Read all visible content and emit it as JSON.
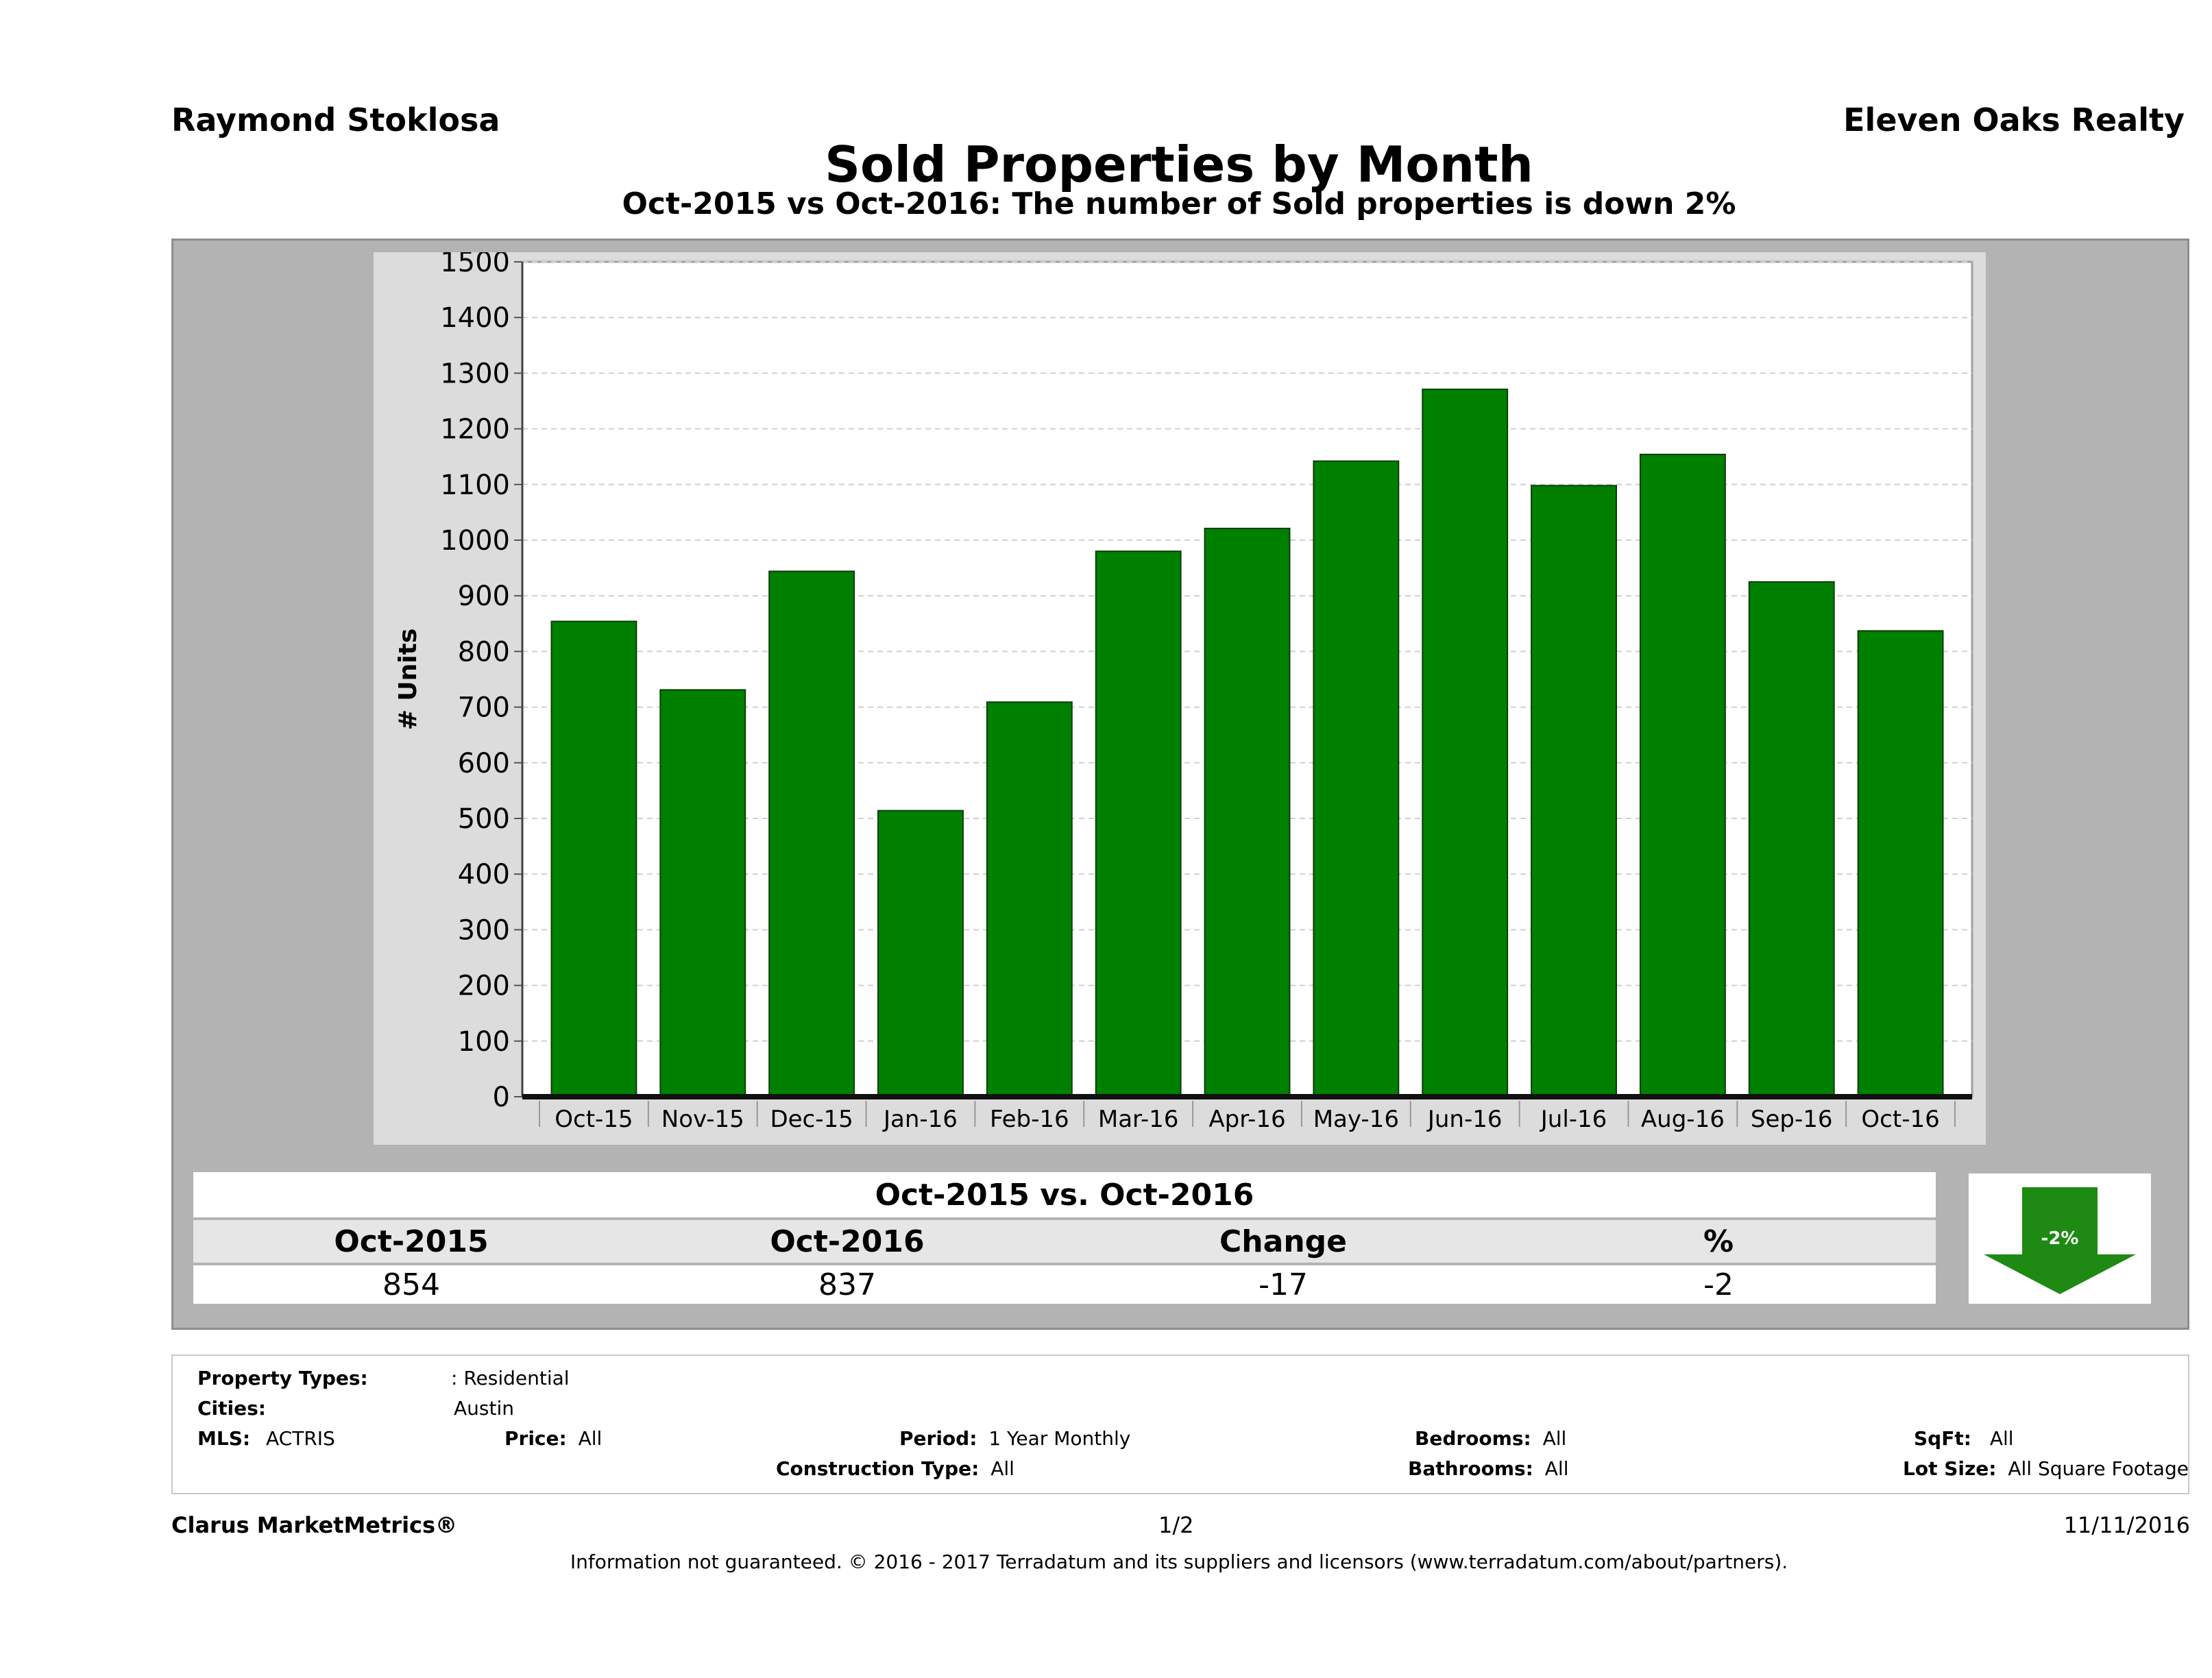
{
  "header": {
    "agent": "Raymond Stoklosa",
    "company": "Eleven Oaks Realty",
    "title": "Sold Properties by Month",
    "subtitle": "Oct-2015 vs Oct-2016: The number of Sold  properties is down 2%"
  },
  "chart_data": {
    "type": "bar",
    "categories": [
      "Oct-15",
      "Nov-15",
      "Dec-15",
      "Jan-16",
      "Feb-16",
      "Mar-16",
      "Apr-16",
      "May-16",
      "Jun-16",
      "Jul-16",
      "Aug-16",
      "Sep-16",
      "Oct-16"
    ],
    "values": [
      854,
      731,
      944,
      514,
      709,
      980,
      1021,
      1142,
      1271,
      1098,
      1154,
      925,
      837
    ],
    "ylabel": "# Units",
    "ylim": [
      0,
      1500
    ],
    "yticks": [
      0,
      100,
      200,
      300,
      400,
      500,
      600,
      700,
      800,
      900,
      1000,
      1100,
      1200,
      1300,
      1400,
      1500
    ],
    "grid": true,
    "bar_color": "#008000"
  },
  "summary": {
    "title": "Oct-2015 vs. Oct-2016",
    "headers": [
      "Oct-2015",
      "Oct-2016",
      "Change",
      "%"
    ],
    "values": [
      "854",
      "837",
      "-17",
      "-2"
    ],
    "arrow_label": "-2%",
    "arrow_color": "#1e8a14"
  },
  "criteria": {
    "property_types_label": "Property Types:",
    "property_types_value": ": Residential",
    "cities_label": "Cities:",
    "cities_value": "Austin",
    "mls_label": "MLS:",
    "mls_value": "ACTRIS",
    "price_label": "Price:",
    "price_value": "All",
    "period_label": "Period:",
    "period_value": "1 Year Monthly",
    "construction_label": "Construction Type:",
    "construction_value": "All",
    "bedrooms_label": "Bedrooms:",
    "bedrooms_value": "All",
    "bathrooms_label": "Bathrooms:",
    "bathrooms_value": "All",
    "sqft_label": "SqFt:",
    "sqft_value": "All",
    "lot_label": "Lot Size:",
    "lot_value": "All Square Footage"
  },
  "footer": {
    "brand": "Clarus MarketMetrics®",
    "page": "1/2",
    "date": "11/11/2016",
    "disclaimer": "Information not guaranteed. © 2016 - 2017 Terradatum and its suppliers and licensors (www.terradatum.com/about/partners)."
  }
}
